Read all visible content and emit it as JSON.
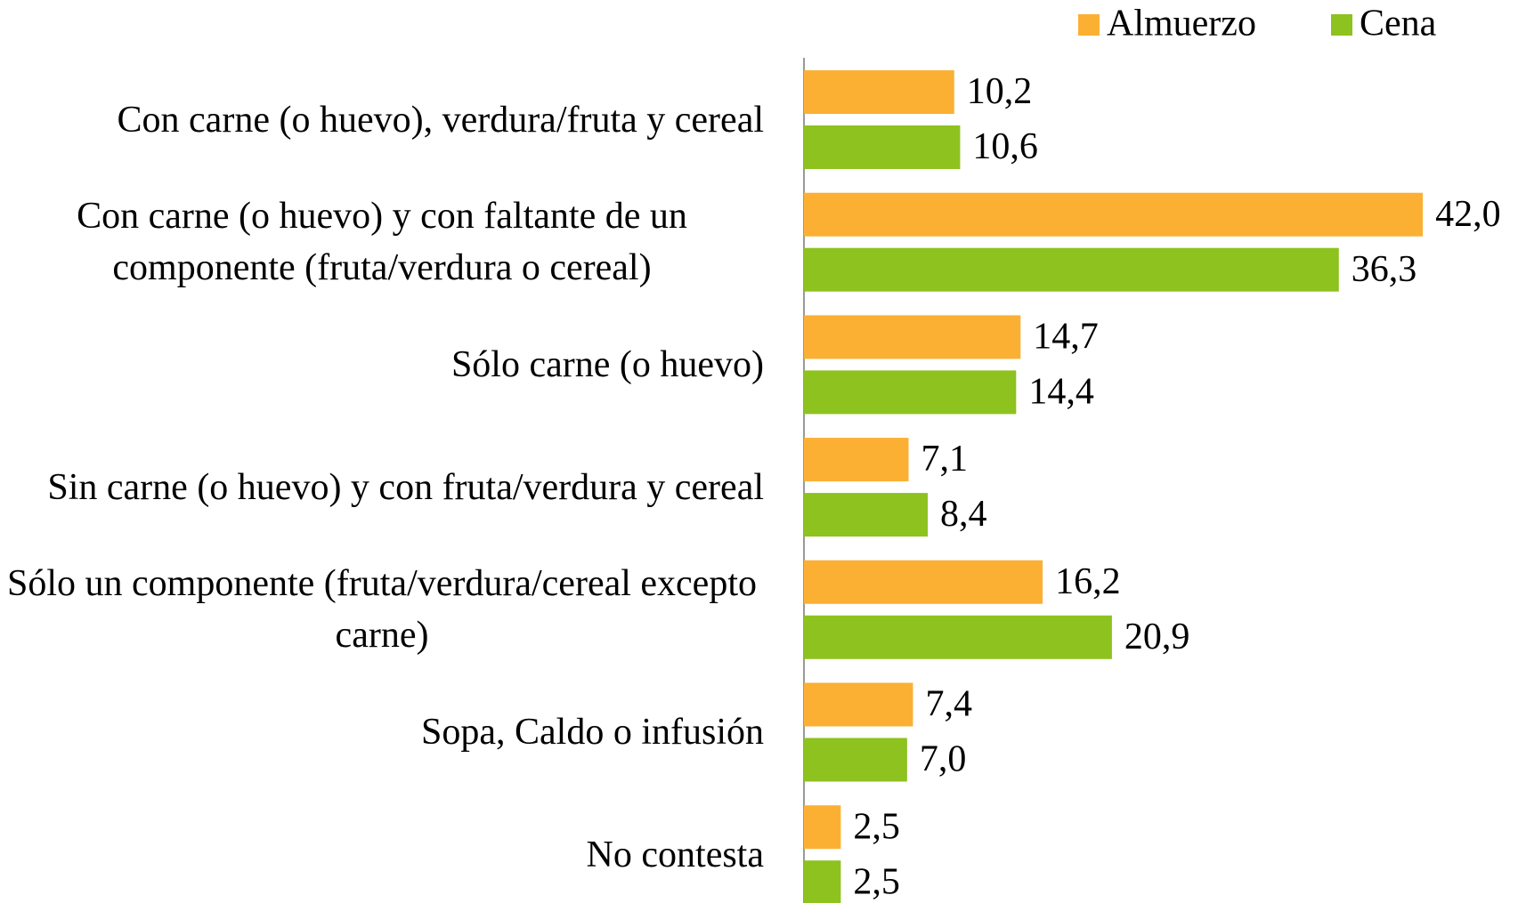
{
  "chart_data": {
    "type": "hbar",
    "categories": [
      "Con carne (o huevo), verdura/fruta y cereal",
      "Con  carne (o huevo) y con faltante de un componente (fruta/verdura o cereal)",
      "Sólo  carne (o huevo)",
      "Sin carne (o huevo) y con fruta/verdura y cereal",
      "Sólo un componente (fruta/verdura/cereal excepto carne)",
      "Sopa, Caldo o infusión",
      "No contesta"
    ],
    "series": [
      {
        "name": "Almuerzo",
        "color": "#fbb034",
        "values": [
          10.2,
          42.0,
          14.7,
          7.1,
          16.2,
          7.4,
          2.5
        ],
        "value_labels": [
          "10,2",
          "42,0",
          "14,7",
          "7,1",
          "16,2",
          "7,4",
          "2,5"
        ]
      },
      {
        "name": "Cena",
        "color": "#8dc21f",
        "values": [
          10.6,
          36.3,
          14.4,
          8.4,
          20.9,
          7.0,
          2.5
        ],
        "value_labels": [
          "10,6",
          "36,3",
          "14,4",
          "8,4",
          "20,9",
          "7,0",
          "2,5"
        ]
      }
    ],
    "legend": "top-right"
  }
}
